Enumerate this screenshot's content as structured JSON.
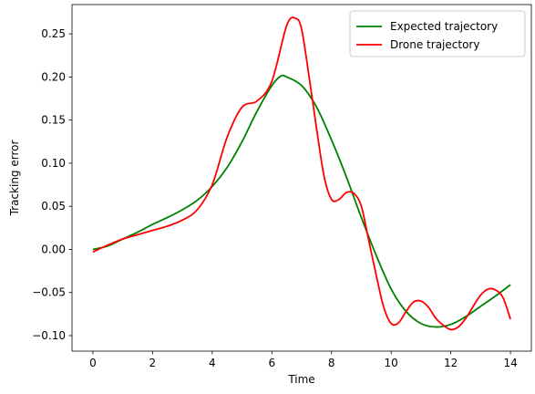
{
  "chart_data": {
    "type": "line",
    "xlabel": "Time",
    "ylabel": "Tracking error",
    "xlim": [
      -0.7,
      14.7
    ],
    "ylim": [
      -0.118,
      0.284
    ],
    "xticks": [
      0,
      2,
      4,
      6,
      8,
      10,
      12,
      14
    ],
    "xtick_labels": [
      "0",
      "2",
      "4",
      "6",
      "8",
      "10",
      "12",
      "14"
    ],
    "yticks": [
      -0.1,
      -0.05,
      0.0,
      0.05,
      0.1,
      0.15,
      0.2,
      0.25
    ],
    "ytick_labels": [
      "−0.10",
      "−0.05",
      "0.00",
      "0.05",
      "0.10",
      "0.15",
      "0.20",
      "0.25"
    ],
    "grid": false,
    "legend_position": "top-right",
    "series": [
      {
        "name": "Expected trajectory",
        "color": "#008000",
        "x": [
          0,
          0.5,
          1,
          1.5,
          2,
          2.5,
          3,
          3.5,
          4,
          4.5,
          5,
          5.5,
          6,
          6.3,
          6.5,
          7,
          7.5,
          8,
          8.5,
          9,
          9.5,
          10,
          10.5,
          11,
          11.5,
          12,
          12.5,
          13,
          13.5,
          14
        ],
        "y": [
          0.0,
          0.004,
          0.012,
          0.02,
          0.029,
          0.037,
          0.046,
          0.057,
          0.073,
          0.095,
          0.125,
          0.16,
          0.19,
          0.201,
          0.2,
          0.19,
          0.165,
          0.127,
          0.084,
          0.037,
          -0.007,
          -0.046,
          -0.072,
          -0.086,
          -0.09,
          -0.087,
          -0.078,
          -0.066,
          -0.054,
          -0.041
        ]
      },
      {
        "name": "Drone trajectory",
        "color": "#ff0000",
        "x": [
          0,
          0.5,
          1,
          1.5,
          2,
          2.5,
          3,
          3.5,
          4,
          4.5,
          5,
          5.5,
          6,
          6.5,
          6.8,
          7,
          7.25,
          7.5,
          7.75,
          8,
          8.25,
          8.5,
          8.75,
          9,
          9.25,
          9.5,
          9.75,
          10,
          10.25,
          10.5,
          10.75,
          11,
          11.25,
          11.5,
          11.75,
          12,
          12.25,
          12.5,
          12.75,
          13,
          13.25,
          13.5,
          13.75,
          14
        ],
        "y": [
          -0.003,
          0.005,
          0.012,
          0.017,
          0.022,
          0.027,
          0.034,
          0.046,
          0.075,
          0.13,
          0.165,
          0.172,
          0.195,
          0.26,
          0.268,
          0.255,
          0.2,
          0.14,
          0.085,
          0.058,
          0.058,
          0.066,
          0.065,
          0.05,
          0.01,
          -0.03,
          -0.067,
          -0.086,
          -0.085,
          -0.072,
          -0.061,
          -0.06,
          -0.067,
          -0.08,
          -0.088,
          -0.093,
          -0.09,
          -0.08,
          -0.066,
          -0.053,
          -0.046,
          -0.047,
          -0.056,
          -0.081
        ]
      }
    ]
  }
}
